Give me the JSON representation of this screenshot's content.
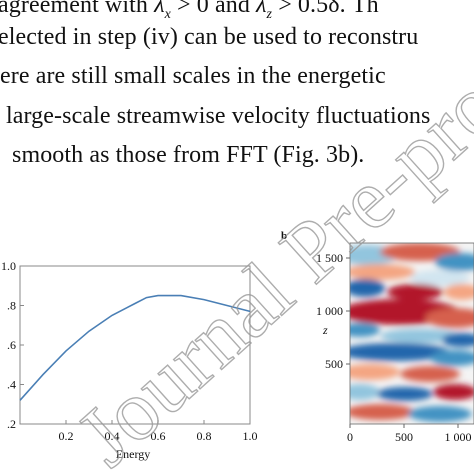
{
  "text": {
    "line1_a": "agreement with ",
    "line1_math_a": "λ",
    "line1_sub_a": "x",
    "line1_b": " > 0",
    "line1_c": "  and ",
    "line1_math_b": "λ",
    "line1_sub_b": "z",
    "line1_d": " > 0.5δ",
    "line1_e": ". Th",
    "line2": "elected in step (iv) can be used to reconstru",
    "line3": "ere are still small scales in the energetic",
    "line4": "large-scale streamwise velocity fluctuations",
    "line5": "smooth as those from FFT (Fig. 3b)."
  },
  "panel_b_label": "b",
  "watermark": "Journal Pre-proof",
  "chart_data": [
    {
      "type": "line",
      "xlabel": "Energy",
      "x_ticks": [
        "0.2",
        "0.4",
        "0.6",
        "0.8",
        "1.0"
      ],
      "y_ticks": [
        ".2",
        ".4",
        ".6",
        ".8",
        "1.0"
      ],
      "x": [
        0.0,
        0.1,
        0.2,
        0.3,
        0.4,
        0.5,
        0.55,
        0.6,
        0.65,
        0.7,
        0.8,
        0.9,
        1.0
      ],
      "y": [
        0.32,
        0.45,
        0.57,
        0.67,
        0.75,
        0.81,
        0.84,
        0.85,
        0.85,
        0.85,
        0.83,
        0.8,
        0.77
      ],
      "xlim": [
        0.0,
        1.0
      ],
      "ylim": [
        0.2,
        1.0
      ],
      "line_color": "#4a7fb5"
    },
    {
      "type": "heatmap",
      "xlabel": "",
      "ylabel": "z",
      "x_ticks": [
        "0",
        "500",
        "1 000"
      ],
      "y_ticks": [
        "1 500",
        "1 000",
        "500"
      ],
      "colors": [
        "#b2182b",
        "#d6604d",
        "#f4a582",
        "#fddbc7",
        "#f7f7f7",
        "#d1e5f0",
        "#92c5de",
        "#4393c3",
        "#2166ac"
      ]
    }
  ]
}
